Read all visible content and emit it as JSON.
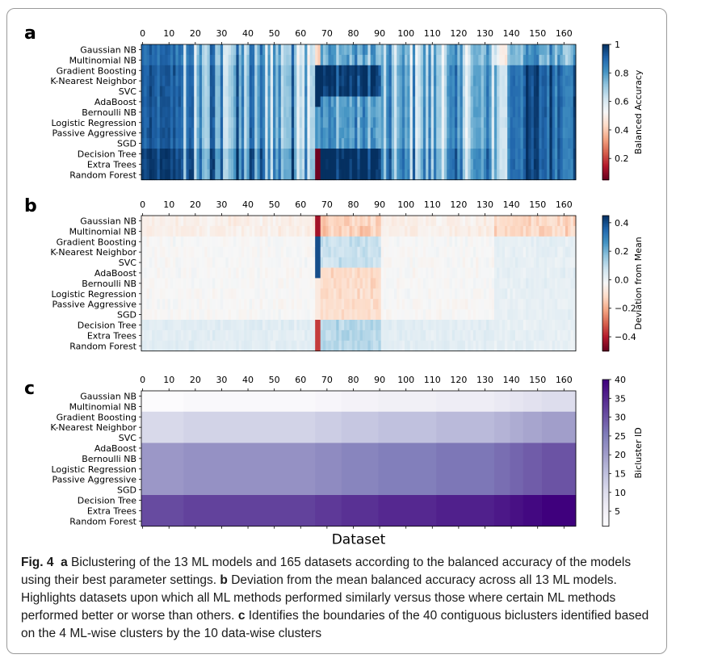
{
  "chart_data": [
    {
      "type": "heatmap",
      "panel": "a",
      "rows": [
        "Gaussian NB",
        "Multinomial NB",
        "Gradient Boosting",
        "K-Nearest Neighbor",
        "SVC",
        "AdaBoost",
        "Bernoulli NB",
        "Logistic Regression",
        "Passive Aggressive",
        "SGD",
        "Decision Tree",
        "Extra Trees",
        "Random Forest"
      ],
      "x_ticks": [
        0,
        10,
        20,
        30,
        40,
        50,
        60,
        70,
        80,
        90,
        100,
        110,
        120,
        130,
        140,
        150,
        160
      ],
      "x_range": [
        0,
        165
      ],
      "colorbar": {
        "label": "Balanced Accuracy",
        "ticks": [
          0.2,
          0.4,
          0.6,
          0.8,
          1.0
        ],
        "range": [
          0.05,
          1.0
        ],
        "colormap": "RdBu"
      }
    },
    {
      "type": "heatmap",
      "panel": "b",
      "rows": [
        "Gaussian NB",
        "Multinomial NB",
        "Gradient Boosting",
        "K-Nearest Neighbor",
        "SVC",
        "AdaBoost",
        "Bernoulli NB",
        "Logistic Regression",
        "Passive Aggressive",
        "SGD",
        "Decision Tree",
        "Extra Trees",
        "Random Forest"
      ],
      "x_ticks": [
        0,
        10,
        20,
        30,
        40,
        50,
        60,
        70,
        80,
        90,
        100,
        110,
        120,
        130,
        140,
        150,
        160
      ],
      "x_range": [
        0,
        165
      ],
      "colorbar": {
        "label": "Deviation from Mean",
        "ticks": [
          -0.4,
          -0.2,
          0.0,
          0.2,
          0.4
        ],
        "tick_labels": [
          "−0.4",
          "−0.2",
          "0.0",
          "0.2",
          "0.4"
        ],
        "range": [
          -0.5,
          0.45
        ],
        "colormap": "RdBu"
      }
    },
    {
      "type": "heatmap",
      "panel": "c",
      "rows": [
        "Gaussian NB",
        "Multinomial NB",
        "Gradient Boosting",
        "K-Nearest Neighbor",
        "SVC",
        "AdaBoost",
        "Bernoulli NB",
        "Logistic Regression",
        "Passive Aggressive",
        "SGD",
        "Decision Tree",
        "Extra Trees",
        "Random Forest"
      ],
      "x_ticks": [
        0,
        10,
        20,
        30,
        40,
        50,
        60,
        70,
        80,
        90,
        100,
        110,
        120,
        130,
        140,
        150,
        160
      ],
      "x_range": [
        0,
        165
      ],
      "xlabel": "Dataset",
      "row_groups": [
        [
          0,
          1
        ],
        [
          2,
          4
        ],
        [
          5,
          9
        ],
        [
          10,
          12
        ]
      ],
      "col_boundaries": [
        0,
        16,
        66,
        76,
        90,
        112,
        134,
        140,
        145,
        152,
        165
      ],
      "bicluster_ids": [
        [
          1,
          2,
          3,
          4,
          5,
          6,
          7,
          8,
          9,
          10
        ],
        [
          11,
          12,
          13,
          14,
          15,
          16,
          17,
          18,
          19,
          20
        ],
        [
          21,
          22,
          23,
          24,
          25,
          26,
          27,
          28,
          29,
          30
        ],
        [
          31,
          32,
          33,
          34,
          35,
          36,
          37,
          38,
          39,
          40
        ]
      ],
      "colorbar": {
        "label": "Bicluster ID",
        "ticks": [
          5,
          10,
          15,
          20,
          25,
          30,
          35,
          40
        ],
        "range": [
          1,
          40
        ],
        "colormap": "Purples"
      }
    }
  ],
  "panel_letters": {
    "a": "a",
    "b": "b",
    "c": "c"
  },
  "caption": {
    "fig_label": "Fig. 4",
    "part_a_letter": "a",
    "part_a": "Biclustering of the 13 ML models and 165 datasets according to the balanced accuracy of the models using their best parameter settings.",
    "part_b_letter": "b",
    "part_b": "Deviation from the mean balanced accuracy across all 13 ML models. Highlights datasets upon which all ML methods performed similarly versus those where certain ML methods performed better or worse than others.",
    "part_c_letter": "c",
    "part_c": "Identifies the boundaries of the 40 contiguous biclusters identified based on the 4 ML-wise clusters by the 10 data-wise clusters"
  }
}
